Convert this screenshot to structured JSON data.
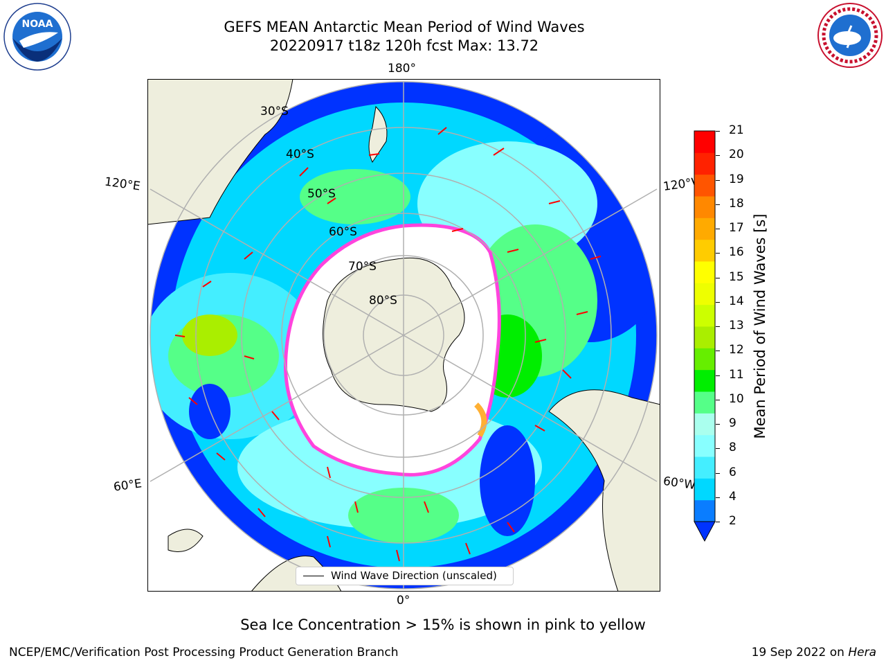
{
  "header": {
    "title_line1": "GEFS MEAN Antarctic Mean Period of Wind Waves",
    "title_line2": "20220917 t18z 120h fcst   Max: 13.72"
  },
  "logos": {
    "noaa_text": "NOAA",
    "noaa_ring_text": "NATIONAL OCEANIC AND ATMOSPHERIC ADMINISTRATION · U.S. DEPARTMENT OF COMMERCE",
    "nws_ring_text": "NATIONAL WEATHER SERVICE"
  },
  "map": {
    "projection": "south polar stereographic",
    "longitude_labels": {
      "top": "180°",
      "bottom": "0°",
      "upper_left": "120°E",
      "lower_left": "60°E",
      "upper_right": "120°W",
      "lower_right": "60°W"
    },
    "latitude_labels": [
      "30°S",
      "40°S",
      "50°S",
      "60°S",
      "70°S",
      "80°S"
    ],
    "legend_entry": "Wind Wave Direction (unscaled)",
    "colors": {
      "land": "#eeeedd",
      "ice_edge": "#ff44dd",
      "ice_fill": "#ffb033",
      "arrows": "#ff0000",
      "grid": "#b0b0b0"
    }
  },
  "colorbar": {
    "label": "Mean Period of Wind Waves [s]",
    "ticks": [
      "2",
      "4",
      "6",
      "8",
      "9",
      "10",
      "11",
      "12",
      "13",
      "14",
      "15",
      "16",
      "17",
      "18",
      "19",
      "20",
      "21"
    ],
    "colors": [
      "#0a7dff",
      "#00d8ff",
      "#44eeff",
      "#88ffff",
      "#aaffee",
      "#55ff88",
      "#00ee00",
      "#66ee00",
      "#aaee00",
      "#ccff00",
      "#eeff00",
      "#ffff00",
      "#ffcc00",
      "#ffaa00",
      "#ff8800",
      "#ff5500",
      "#ff2200",
      "#ff0000"
    ],
    "under_color": "#0033ff"
  },
  "footer": {
    "note": "Sea Ice Concentration > 15% is shown in pink to yellow",
    "left": "NCEP/EMC/Verification Post Processing Product Generation Branch",
    "right_date": "19 Sep 2022 on",
    "right_host": "Hera"
  }
}
